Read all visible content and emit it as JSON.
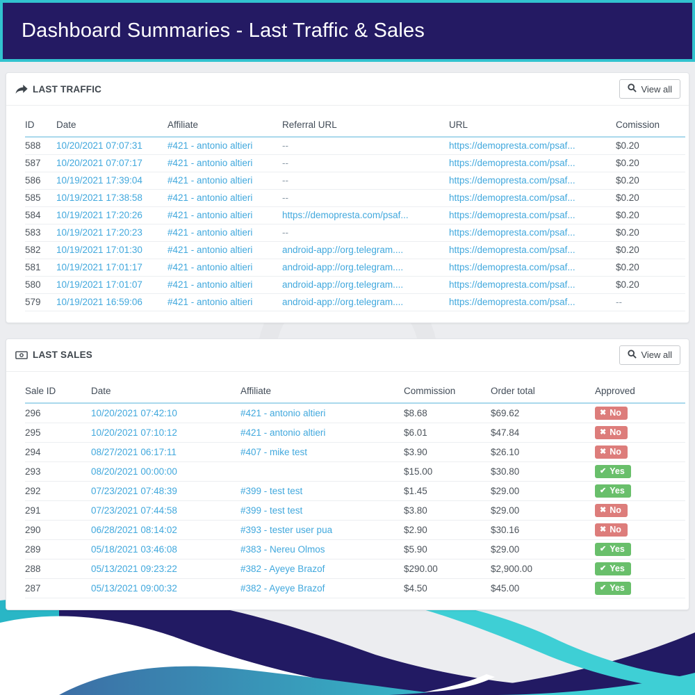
{
  "page": {
    "title": "Dashboard Summaries - Last Traffic & Sales"
  },
  "colors": {
    "banner_bg": "#241a63",
    "banner_border": "#32c3cf",
    "link_blue": "#41a8dd",
    "badge_no_red": "#dd7d7b",
    "badge_yes_green": "#69bf6b",
    "header_underline": "#a9d8ec",
    "page_bg": "#ecedf0"
  },
  "traffic_panel": {
    "title": "LAST TRAFFIC",
    "view_all_label": "View all",
    "columns": [
      "ID",
      "Date",
      "Affiliate",
      "Referral URL",
      "URL",
      "Comission"
    ],
    "cell_kinds": [
      "plain",
      "link",
      "link",
      "link",
      "link",
      "plain"
    ],
    "rows": [
      [
        "588",
        "10/20/2021 07:07:31",
        "#421 - antonio altieri",
        "--",
        "https://demopresta.com/psaf...",
        "$0.20"
      ],
      [
        "587",
        "10/20/2021 07:07:17",
        "#421 - antonio altieri",
        "--",
        "https://demopresta.com/psaf...",
        "$0.20"
      ],
      [
        "586",
        "10/19/2021 17:39:04",
        "#421 - antonio altieri",
        "--",
        "https://demopresta.com/psaf...",
        "$0.20"
      ],
      [
        "585",
        "10/19/2021 17:38:58",
        "#421 - antonio altieri",
        "--",
        "https://demopresta.com/psaf...",
        "$0.20"
      ],
      [
        "584",
        "10/19/2021 17:20:26",
        "#421 - antonio altieri",
        "https://demopresta.com/psaf...",
        "https://demopresta.com/psaf...",
        "$0.20"
      ],
      [
        "583",
        "10/19/2021 17:20:23",
        "#421 - antonio altieri",
        "--",
        "https://demopresta.com/psaf...",
        "$0.20"
      ],
      [
        "582",
        "10/19/2021 17:01:30",
        "#421 - antonio altieri",
        "android-app://org.telegram....",
        "https://demopresta.com/psaf...",
        "$0.20"
      ],
      [
        "581",
        "10/19/2021 17:01:17",
        "#421 - antonio altieri",
        "android-app://org.telegram....",
        "https://demopresta.com/psaf...",
        "$0.20"
      ],
      [
        "580",
        "10/19/2021 17:01:07",
        "#421 - antonio altieri",
        "android-app://org.telegram....",
        "https://demopresta.com/psaf...",
        "$0.20"
      ],
      [
        "579",
        "10/19/2021 16:59:06",
        "#421 - antonio altieri",
        "android-app://org.telegram....",
        "https://demopresta.com/psaf...",
        "--"
      ]
    ]
  },
  "sales_panel": {
    "title": "LAST SALES",
    "view_all_label": "View all",
    "columns": [
      "Sale ID",
      "Date",
      "Affiliate",
      "Commission",
      "Order total",
      "Approved"
    ],
    "cell_kinds": [
      "plain",
      "link",
      "link",
      "plain",
      "plain",
      "badge"
    ],
    "rows": [
      [
        "296",
        "10/20/2021 07:42:10",
        "#421 - antonio altieri",
        "$8.68",
        "$69.62",
        "No"
      ],
      [
        "295",
        "10/20/2021 07:10:12",
        "#421 - antonio altieri",
        "$6.01",
        "$47.84",
        "No"
      ],
      [
        "294",
        "08/27/2021 06:17:11",
        "#407 - mike test",
        "$3.90",
        "$26.10",
        "No"
      ],
      [
        "293",
        "08/20/2021 00:00:00",
        "",
        "$15.00",
        "$30.80",
        "Yes"
      ],
      [
        "292",
        "07/23/2021 07:48:39",
        "#399 - test test",
        "$1.45",
        "$29.00",
        "Yes"
      ],
      [
        "291",
        "07/23/2021 07:44:58",
        "#399 - test test",
        "$3.80",
        "$29.00",
        "No"
      ],
      [
        "290",
        "06/28/2021 08:14:02",
        "#393 - tester user pua",
        "$2.90",
        "$30.16",
        "No"
      ],
      [
        "289",
        "05/18/2021 03:46:08",
        "#383 - Nereu Olmos",
        "$5.90",
        "$29.00",
        "Yes"
      ],
      [
        "288",
        "05/13/2021 09:23:22",
        "#382 - Ayeye Brazof",
        "$290.00",
        "$2,900.00",
        "Yes"
      ],
      [
        "287",
        "05/13/2021 09:00:32",
        "#382 - Ayeye Brazof",
        "$4.50",
        "$45.00",
        "Yes"
      ]
    ]
  }
}
